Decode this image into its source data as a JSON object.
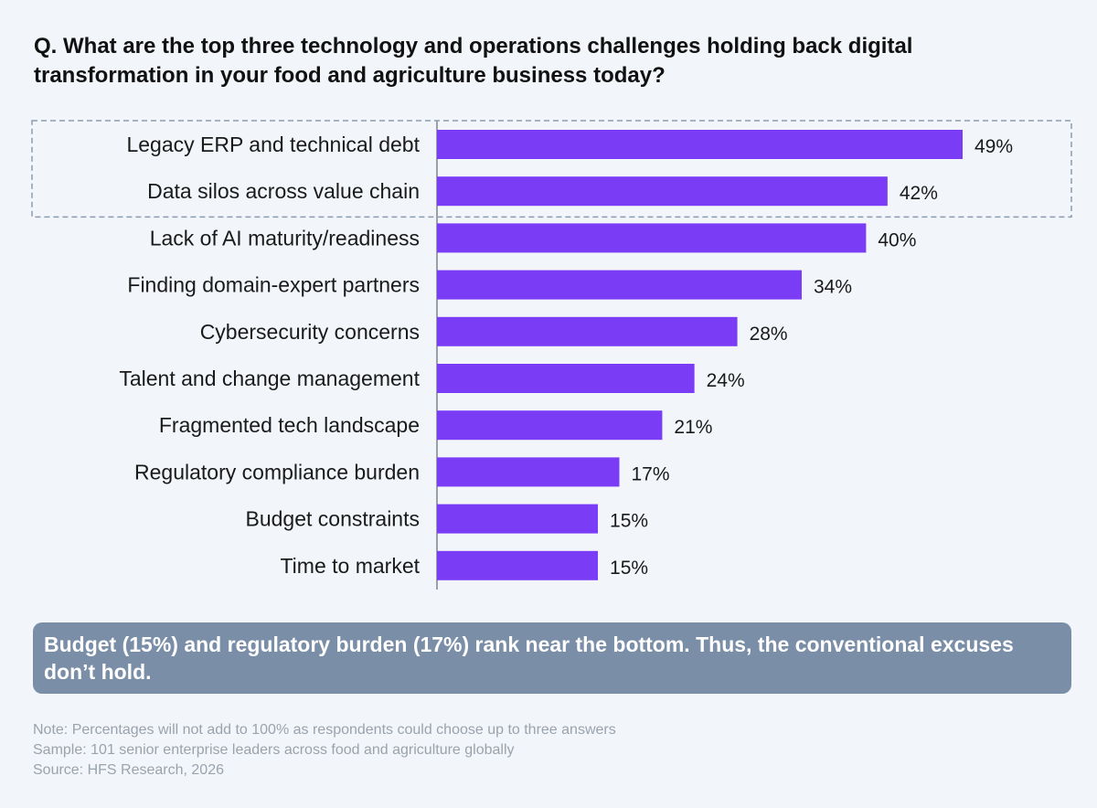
{
  "title": "Q. What are the top three technology and operations challenges holding back digital transformation in your food and agriculture business today?",
  "chart_data": {
    "type": "bar",
    "orientation": "horizontal",
    "categories": [
      "Legacy ERP and technical debt",
      "Data silos across value chain",
      "Lack of AI maturity/readiness",
      "Finding domain-expert partners",
      "Cybersecurity concerns",
      "Talent and change management",
      "Fragmented tech landscape",
      "Regulatory compliance burden",
      "Budget constraints",
      "Time to market"
    ],
    "values": [
      49,
      42,
      40,
      34,
      28,
      24,
      21,
      17,
      15,
      15
    ],
    "value_labels": [
      "49%",
      "42%",
      "40%",
      "34%",
      "28%",
      "24%",
      "21%",
      "17%",
      "15%",
      "15%"
    ],
    "highlighted": [
      "Legacy ERP and technical debt",
      "Data silos across value chain"
    ],
    "bar_color": "#7a3cf5",
    "highlight_box_color": "#8a9bb0",
    "xlim": [
      0,
      50
    ],
    "grid": false,
    "legend": "none"
  },
  "callout": {
    "text": "Budget (15%) and regulatory burden (17%) rank near the bottom. Thus, the conventional excuses don’t hold.",
    "background": "#7a8ea8"
  },
  "notes": [
    "Note: Percentages will not add to 100% as respondents could choose up to three answers",
    "Sample: 101 senior enterprise leaders across food and agriculture globally",
    "Source: HFS Research, 2026"
  ]
}
